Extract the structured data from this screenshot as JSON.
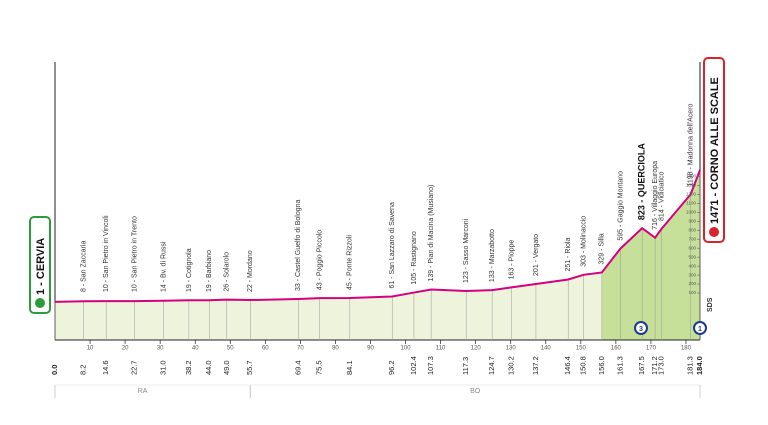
{
  "chart_data": {
    "type": "area",
    "x": [
      0.0,
      8.2,
      14.6,
      22.7,
      31.0,
      38.2,
      44.0,
      49.0,
      55.7,
      69.4,
      75.5,
      84.1,
      96.2,
      102.4,
      107.3,
      117.3,
      124.7,
      130.2,
      137.2,
      146.4,
      150.8,
      156.0,
      161.3,
      167.5,
      171.2,
      173.0,
      181.3,
      184.0
    ],
    "x_labels": [
      "0.0",
      "8.2",
      "14.6",
      "22.7",
      "31.0",
      "38.2",
      "44.0",
      "49.0",
      "55.7",
      "69.4",
      "75.5",
      "84.1",
      "96.2",
      "102.4",
      "107.3",
      "117.3",
      "124.7",
      "130.2",
      "137.2",
      "146.4",
      "150.8",
      "156.0",
      "161.3",
      "167.5",
      "171.2",
      "173.0",
      "181.3",
      "184.0"
    ],
    "values": [
      1,
      8,
      10,
      10,
      14,
      19,
      19,
      26,
      22,
      33,
      43,
      45,
      61,
      105,
      139,
      123,
      133,
      163,
      201,
      251,
      303,
      329,
      595,
      823,
      716,
      814,
      1198,
      1471
    ],
    "place_labels": [
      "1 - CERVIA",
      "8 - San Zaccaria",
      "10 - San Pietro in Vincoli",
      "10 - San Pietro in Trento",
      "14 - Bv. di Russi",
      "19 - Cotignola",
      "19 - Barbiano",
      "26 - Solarolo",
      "22 - Mordano",
      "33 - Castel Guelfo di Bologna",
      "43 - Poggio Piccolo",
      "45 - Ponte Rizzoli",
      "61 - San Lazzaro di Savena",
      "105 - Rastignano",
      "139 - Pian di Macina (Musiano)",
      "123 - Sasso Marconi",
      "133 - Marzabotto",
      "163 - Pioppe",
      "201 - Vergato",
      "251 - Riola",
      "303 - Molinaccio",
      "329 - Silla",
      "595 - Gaggio Montano",
      "823 - QUERCIOLA",
      "716 - Villaggio Europa",
      "814 - Vidiciatico",
      "1198 - Madonna dell'Acero",
      "1471 - CORNO ALLE SCALE"
    ],
    "bold_labels": [
      23
    ],
    "color": "#d4007f",
    "xlim": [
      0,
      184
    ],
    "xticks": [
      10,
      20,
      30,
      40,
      50,
      60,
      70,
      80,
      90,
      100,
      110,
      120,
      130,
      140,
      150,
      160,
      170,
      180
    ],
    "ylim": [
      0,
      1471
    ],
    "yticks": [
      100,
      200,
      300,
      400,
      500,
      600,
      700,
      800,
      900,
      1000,
      1100,
      1200,
      1300,
      1400
    ],
    "regions": [
      {
        "label": "RA",
        "from": 0,
        "to": 55.7
      },
      {
        "label": "BO",
        "from": 55.7,
        "to": 184
      }
    ],
    "marker": "SDS"
  }
}
